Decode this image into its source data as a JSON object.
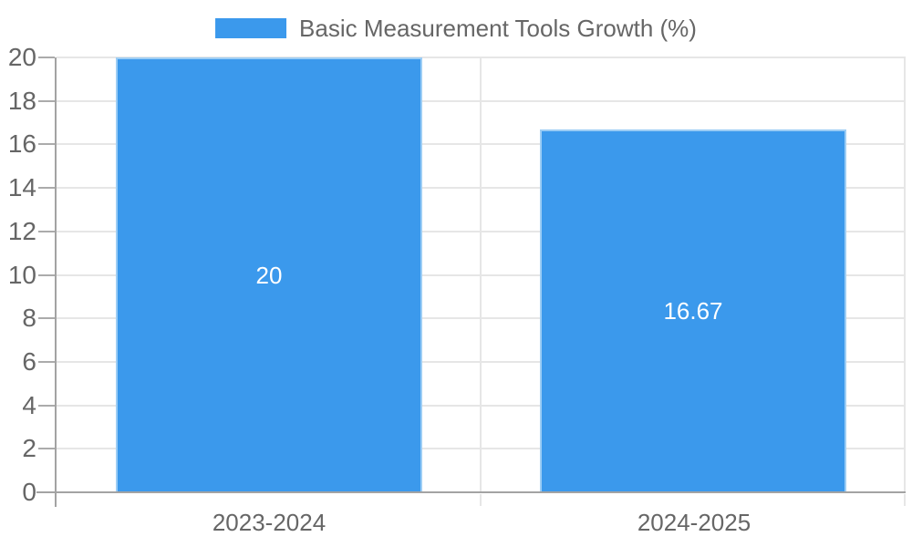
{
  "legend": {
    "label": "Basic Measurement Tools Growth (%)"
  },
  "colors": {
    "bar_fill": "#3B99EC",
    "bar_edge": "#9CCDF5",
    "grid_line": "#E6E6E6",
    "axis_line": "#A3A3A3",
    "tick_mark": "#ABABAB",
    "tick_text": "#666666",
    "value_label_text": "#FFFFFF",
    "background": "#FFFFFF"
  },
  "chart_data": {
    "type": "bar",
    "title": "Basic Measurement Tools Growth (%)",
    "categories": [
      "2023-2024",
      "2024-2025"
    ],
    "values": [
      20,
      16.67
    ],
    "value_labels": [
      "20",
      "16.67"
    ],
    "xlabel": "",
    "ylabel": "",
    "ylim": [
      0,
      20
    ],
    "yticks": [
      0,
      2,
      4,
      6,
      8,
      10,
      12,
      14,
      16,
      18,
      20
    ],
    "grid": true,
    "legend_position": "top",
    "value_labels_position": "center-of-bar"
  }
}
